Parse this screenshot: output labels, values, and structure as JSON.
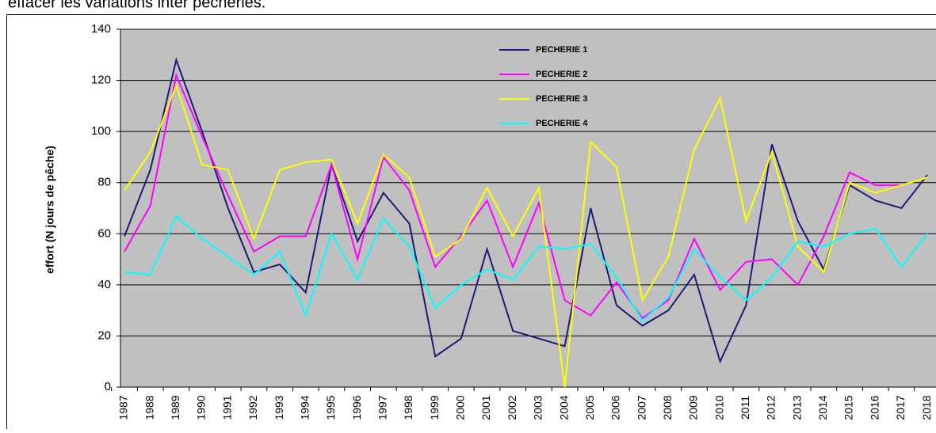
{
  "caption": "effacer les variations inter pêcheries.",
  "chart_data": {
    "type": "line",
    "y_label": "effort (N jours de pêche)",
    "categories": [
      "1987",
      "1988",
      "1989",
      "1990",
      "1991",
      "1992",
      "1993",
      "1994",
      "1995",
      "1996",
      "1997",
      "1998",
      "1999",
      "2000",
      "2001",
      "2002",
      "2003",
      "2004",
      "2005",
      "2006",
      "2007",
      "2008",
      "2009",
      "2010",
      "2011",
      "2012",
      "2013",
      "2014",
      "2015",
      "2016",
      "2017",
      "2018"
    ],
    "series": [
      {
        "name": "PECHERIE 1",
        "color": "#1c1c78",
        "values": [
          59,
          85,
          128,
          100,
          70,
          45,
          48,
          37,
          87,
          57,
          76,
          64,
          12,
          19,
          54,
          22,
          19,
          16,
          70,
          32,
          24,
          30,
          44,
          10,
          32,
          95,
          65,
          46,
          79,
          73,
          70,
          83
        ]
      },
      {
        "name": "PECHERIE 2",
        "color": "#ff00ff",
        "values": [
          53,
          71,
          122,
          98,
          75,
          53,
          59,
          59,
          87,
          50,
          90,
          77,
          47,
          59,
          73,
          47,
          72,
          34,
          28,
          41,
          27,
          34,
          58,
          38,
          49,
          50,
          40,
          59,
          84,
          79,
          79,
          82
        ]
      },
      {
        "name": "PECHERIE 3",
        "color": "#ffff00",
        "values": [
          77,
          92,
          118,
          87,
          85,
          58,
          85,
          88,
          89,
          64,
          91,
          82,
          51,
          58,
          78,
          59,
          78,
          0,
          96,
          86,
          34,
          51,
          93,
          113,
          65,
          92,
          55,
          45,
          80,
          76,
          79,
          82
        ]
      },
      {
        "name": "PECHERIE 4",
        "color": "#00ffff",
        "values": [
          45,
          44,
          67,
          58,
          51,
          44,
          53,
          28,
          60,
          42,
          66,
          55,
          31,
          40,
          46,
          42,
          55,
          54,
          56,
          43,
          26,
          35,
          54,
          43,
          34,
          43,
          57,
          55,
          60,
          62,
          47,
          60
        ]
      }
    ],
    "ylim": [
      0,
      140
    ],
    "yticks": [
      0,
      20,
      40,
      60,
      80,
      100,
      120,
      140
    ],
    "grid": true
  }
}
